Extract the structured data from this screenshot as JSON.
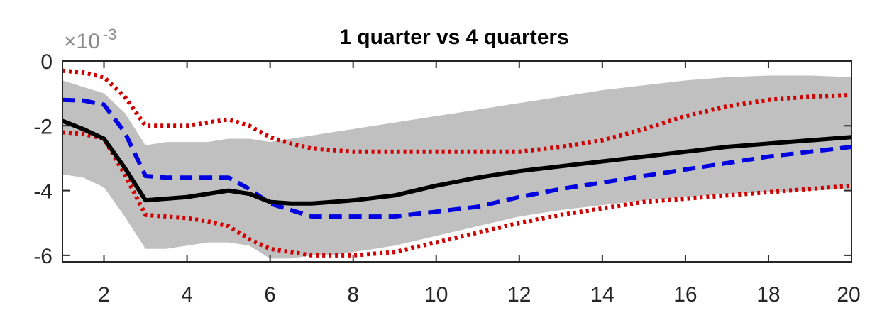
{
  "chart_data": {
    "type": "line",
    "title": "1 quarter vs 4 quarters",
    "xlabel": "",
    "ylabel": "",
    "y_multiplier": {
      "base": "×10",
      "exponent": "-3"
    },
    "xlim": [
      1,
      20
    ],
    "ylim": [
      -6.2,
      0
    ],
    "x_ticks": [
      2,
      4,
      6,
      8,
      10,
      12,
      14,
      16,
      18,
      20
    ],
    "y_ticks": [
      -6,
      -4,
      -2,
      0
    ],
    "x": [
      1,
      1.5,
      2,
      2.5,
      3,
      3.5,
      4,
      4.5,
      5,
      5.5,
      6,
      6.5,
      7,
      7.5,
      8,
      9,
      10,
      11,
      12,
      13,
      14,
      15,
      16,
      17,
      18,
      19,
      20
    ],
    "band": {
      "color": "#c0c0c0",
      "upper": [
        -0.6,
        -0.8,
        -1.0,
        -1.6,
        -2.6,
        -2.5,
        -2.5,
        -2.5,
        -2.4,
        -2.4,
        -2.5,
        -2.4,
        -2.3,
        -2.2,
        -2.1,
        -1.9,
        -1.7,
        -1.5,
        -1.3,
        -1.1,
        -0.9,
        -0.75,
        -0.6,
        -0.5,
        -0.45,
        -0.45,
        -0.5
      ],
      "lower": [
        -3.5,
        -3.6,
        -3.9,
        -4.8,
        -5.8,
        -5.8,
        -5.7,
        -5.6,
        -5.6,
        -5.7,
        -6.1,
        -6.1,
        -6.0,
        -6.0,
        -5.9,
        -5.7,
        -5.4,
        -5.1,
        -4.8,
        -4.6,
        -4.45,
        -4.3,
        -4.2,
        -4.1,
        -4.05,
        -4.0,
        -3.95
      ]
    },
    "series": [
      {
        "style": "solid",
        "color": "#000000",
        "values": [
          -1.85,
          -2.1,
          -2.4,
          -3.3,
          -4.3,
          -4.25,
          -4.2,
          -4.1,
          -4.0,
          -4.1,
          -4.35,
          -4.4,
          -4.4,
          -4.35,
          -4.3,
          -4.15,
          -3.85,
          -3.6,
          -3.4,
          -3.25,
          -3.1,
          -2.95,
          -2.8,
          -2.65,
          -2.55,
          -2.45,
          -2.35
        ]
      },
      {
        "style": "dashed",
        "color": "#0000e0",
        "values": [
          -1.2,
          -1.22,
          -1.35,
          -2.2,
          -3.55,
          -3.6,
          -3.6,
          -3.6,
          -3.6,
          -3.95,
          -4.4,
          -4.6,
          -4.8,
          -4.8,
          -4.8,
          -4.8,
          -4.65,
          -4.5,
          -4.2,
          -3.95,
          -3.75,
          -3.55,
          -3.35,
          -3.15,
          -2.95,
          -2.8,
          -2.65
        ]
      },
      {
        "style": "dotted",
        "color": "#d00000",
        "values": [
          -0.3,
          -0.35,
          -0.5,
          -1.1,
          -2.0,
          -2.0,
          -2.0,
          -1.9,
          -1.8,
          -2.0,
          -2.35,
          -2.55,
          -2.7,
          -2.75,
          -2.8,
          -2.8,
          -2.8,
          -2.8,
          -2.8,
          -2.65,
          -2.45,
          -2.1,
          -1.7,
          -1.4,
          -1.2,
          -1.1,
          -1.05
        ]
      },
      {
        "style": "dotted",
        "color": "#d00000",
        "values": [
          -2.2,
          -2.25,
          -2.4,
          -3.5,
          -4.75,
          -4.8,
          -4.85,
          -4.95,
          -5.1,
          -5.5,
          -5.8,
          -5.9,
          -6.0,
          -6.0,
          -6.0,
          -5.9,
          -5.6,
          -5.3,
          -5.0,
          -4.75,
          -4.55,
          -4.35,
          -4.25,
          -4.15,
          -4.05,
          -3.95,
          -3.85
        ]
      }
    ],
    "grid": false,
    "legend": "none"
  }
}
